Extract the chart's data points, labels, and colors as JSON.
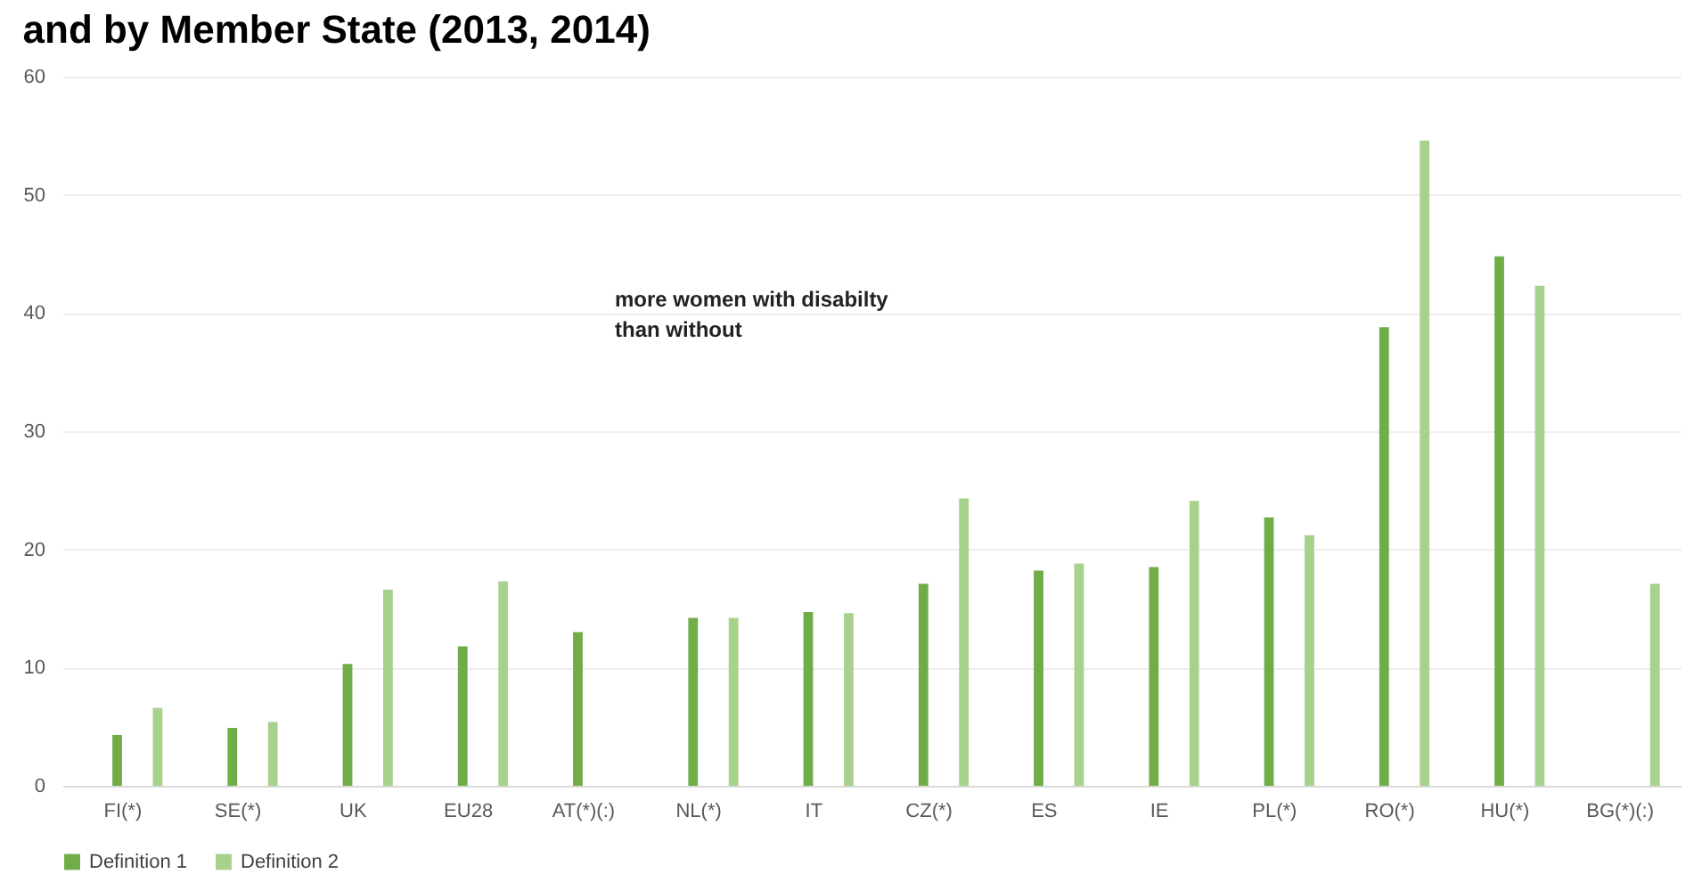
{
  "chart_data": {
    "type": "bar",
    "title": "and by Member State (2013, 2014)",
    "categories": [
      "FI(*)",
      "SE(*)",
      "UK",
      "EU28",
      "AT(*)(:)",
      "NL(*)",
      "IT",
      "CZ(*)",
      "ES",
      "IE",
      "PL(*)",
      "RO(*)",
      "HU(*)",
      "BG(*)(:)"
    ],
    "series": [
      {
        "name": "Definition 1",
        "color": "#70ad47",
        "values": [
          4.3,
          4.9,
          10.3,
          11.8,
          13.0,
          14.2,
          14.7,
          17.1,
          18.2,
          18.5,
          22.7,
          38.8,
          44.8,
          null
        ]
      },
      {
        "name": "Definition 2",
        "color": "#a9d18e",
        "values": [
          6.6,
          5.4,
          16.6,
          17.3,
          null,
          14.2,
          14.6,
          24.3,
          18.8,
          24.1,
          21.2,
          54.6,
          42.3,
          17.1
        ]
      }
    ],
    "ylim": [
      0,
      60
    ],
    "yticks": [
      0,
      10,
      20,
      30,
      40,
      50,
      60
    ],
    "grid": "y",
    "legend": "bottom",
    "annotations": [
      "more women  with disabilty\nthan without"
    ]
  }
}
